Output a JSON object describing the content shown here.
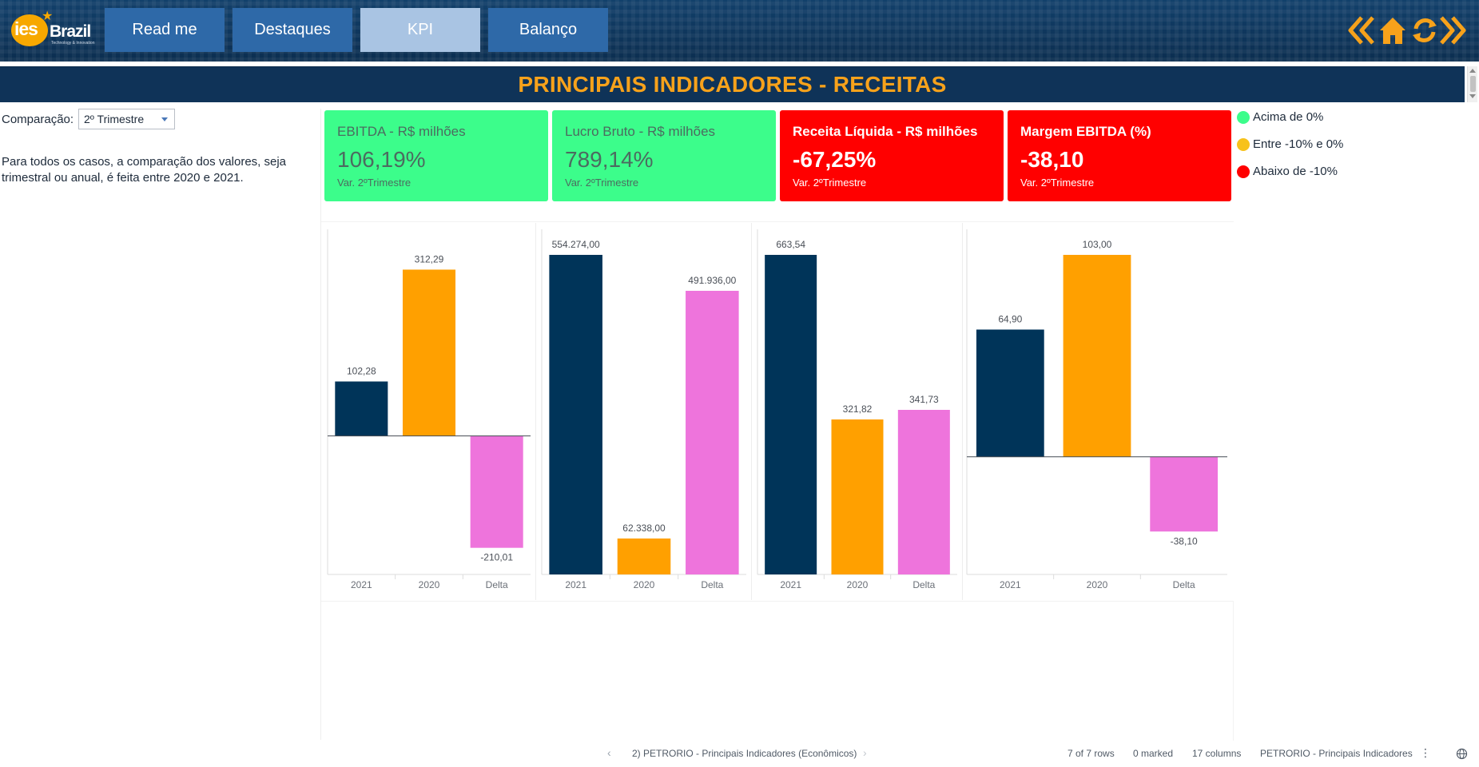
{
  "header": {
    "logo_text": "ies",
    "logo_brand": "Brazil",
    "logo_tagline": "Technology & Innovation",
    "nav": [
      {
        "label": "Read me",
        "active": false
      },
      {
        "label": "Destaques",
        "active": false
      },
      {
        "label": "KPI",
        "active": true
      },
      {
        "label": "Balanço",
        "active": false
      }
    ],
    "icons": [
      "double-chevron-left-icon",
      "home-icon",
      "refresh-icon",
      "double-chevron-right-icon"
    ],
    "icon_color": "#f7a21b"
  },
  "title": "PRINCIPAIS INDICADORES - RECEITAS",
  "comparison": {
    "label": "Comparação:",
    "selected": "2º Trimestre"
  },
  "note": "Para todos os casos, a comparação dos valores, seja trimestral ou anual, é feita entre 2020 e 2021.",
  "kpis": [
    {
      "title": "EBITDA - R$ milhões",
      "value": "106,19%",
      "sub": "Var. 2ºTrimestre",
      "status": "green"
    },
    {
      "title": "Lucro Bruto - R$ milhões",
      "value": "789,14%",
      "sub": "Var. 2ºTrimestre",
      "status": "green"
    },
    {
      "title": "Receita Líquida - R$ milhões",
      "value": "-67,25%",
      "sub": "Var. 2ºTrimestre",
      "status": "red"
    },
    {
      "title": "Margem EBITDA (%)",
      "value": "-38,10",
      "sub": "Var. 2ºTrimestre",
      "status": "red"
    }
  ],
  "legend": [
    {
      "label": "Acima de 0%",
      "color": "#3cfd8b"
    },
    {
      "label": "Entre -10% e 0%",
      "color": "#f7c21b"
    },
    {
      "label": "Abaixo de -10%",
      "color": "#ff0000"
    }
  ],
  "colors": {
    "bar_2021": "#003459",
    "bar_2020": "#ffa000",
    "bar_delta": "#ee74dc",
    "kpi_green": "#3cfd8b",
    "kpi_red": "#ff0000",
    "header_bg": "#0f3358",
    "title_text": "#f7a21b"
  },
  "chart_data": [
    {
      "type": "bar",
      "categories": [
        "2021",
        "2020",
        "Delta"
      ],
      "values": [
        102.28,
        312.29,
        -210.01
      ],
      "labels": [
        "102,28",
        "312,29",
        "-210,01"
      ],
      "ylim": [
        -260,
        340
      ]
    },
    {
      "type": "bar",
      "categories": [
        "2021",
        "2020",
        "Delta"
      ],
      "values": [
        554274.0,
        62338.0,
        491936.0
      ],
      "labels": [
        "554.274,00",
        "62.338,00",
        "491.936,00"
      ],
      "ylim": [
        0,
        554274
      ]
    },
    {
      "type": "bar",
      "categories": [
        "2021",
        "2020",
        "Delta"
      ],
      "values": [
        663.54,
        321.82,
        341.73
      ],
      "labels": [
        "663,54",
        "321,82",
        "341,73"
      ],
      "ylim": [
        0,
        663.54
      ]
    },
    {
      "type": "bar",
      "categories": [
        "2021",
        "2020",
        "Delta"
      ],
      "values": [
        64.9,
        103.0,
        -38.1
      ],
      "labels": [
        "64,90",
        "103,00",
        "-38,10"
      ],
      "ylim": [
        -60,
        103
      ]
    }
  ],
  "status": {
    "sheet": "2) PETRORIO - Principais Indicadores (Econômicos)",
    "rows": "7 of 7 rows",
    "marked": "0 marked",
    "columns": "17 columns",
    "table": "PETRORIO - Principais Indicadores"
  }
}
